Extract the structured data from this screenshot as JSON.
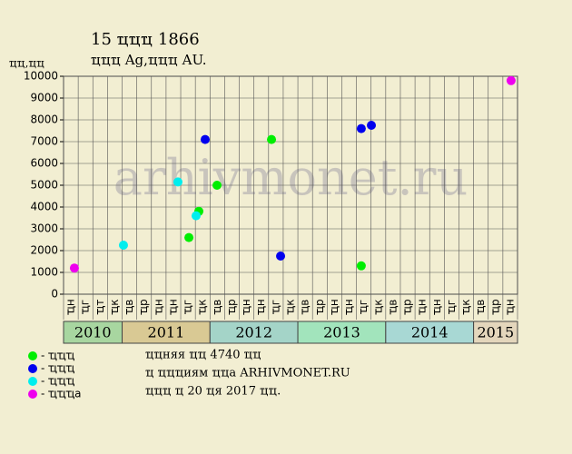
{
  "chart_data": {
    "type": "scatter",
    "title": "15 ҵҵҵ 1866",
    "subtitle": "ҵҵҵ Ag,ҵҵҵ AU.",
    "y_label": "ҵҵ,ҵҵ",
    "watermark": "arhivmonet.ru",
    "xlim": [
      0,
      31
    ],
    "ylim": [
      0,
      10000
    ],
    "yticks": [
      0,
      1000,
      2000,
      3000,
      4000,
      5000,
      6000,
      7000,
      8000,
      9000,
      10000
    ],
    "grid": true,
    "columns": [
      "ҵн",
      "ҵг",
      "ҵт",
      "ҵк",
      "ҵв",
      "ҵр",
      "ҵн",
      "ҵн",
      "ҵг",
      "ҵк",
      "ҵв",
      "ҵр",
      "ҵн",
      "ҵн",
      "ҵг",
      "ҵк",
      "ҵв",
      "ҵр",
      "ҵн",
      "ҵн",
      "ҵг",
      "ҵк",
      "ҵв",
      "ҵр",
      "ҵн",
      "ҵн",
      "ҵг",
      "ҵк",
      "ҵв",
      "ҵр",
      "ҵн"
    ],
    "years": [
      {
        "label": "2010",
        "start": 0,
        "end": 4,
        "color": "#a8d6a0"
      },
      {
        "label": "2011",
        "start": 4,
        "end": 10,
        "color": "#d9c994"
      },
      {
        "label": "2012",
        "start": 10,
        "end": 16,
        "color": "#a4d4c8"
      },
      {
        "label": "2013",
        "start": 16,
        "end": 22,
        "color": "#a2e4bc"
      },
      {
        "label": "2014",
        "start": 22,
        "end": 28,
        "color": "#a8d8d4"
      },
      {
        "label": "2015",
        "start": 28,
        "end": 31,
        "color": "#e4d6bc"
      }
    ],
    "series": [
      {
        "name": "- ҵҵҵ",
        "color": "#00ee00",
        "x": [
          9.24,
          8.56,
          10.48,
          14.2,
          20.33
        ],
        "values": [
          3800,
          2600,
          5000,
          7100,
          1300
        ]
      },
      {
        "name": "- ҵҵҵ",
        "color": "#0000ee",
        "x": [
          9.67,
          14.82,
          20.33,
          21.02
        ],
        "values": [
          7100,
          1750,
          7600,
          7750
        ]
      },
      {
        "name": "- ҵҵҵ",
        "color": "#00eeee",
        "x": [
          4.09,
          7.81,
          9.05
        ],
        "values": [
          2250,
          5150,
          3600
        ]
      },
      {
        "name": "- ҵҵҵа",
        "color": "#ee00ee",
        "x": [
          0.74,
          30.56
        ],
        "values": [
          1200,
          9800
        ]
      }
    ],
    "notes": [
      "ҵҵняя ҵҵ 4740 ҵҵ",
      "ҵ ҵҵҵиям ҵҵа ARHIVMONET.RU",
      "ҵҵҵ ҵ 20 ҵя 2017 ҵҵ."
    ]
  }
}
